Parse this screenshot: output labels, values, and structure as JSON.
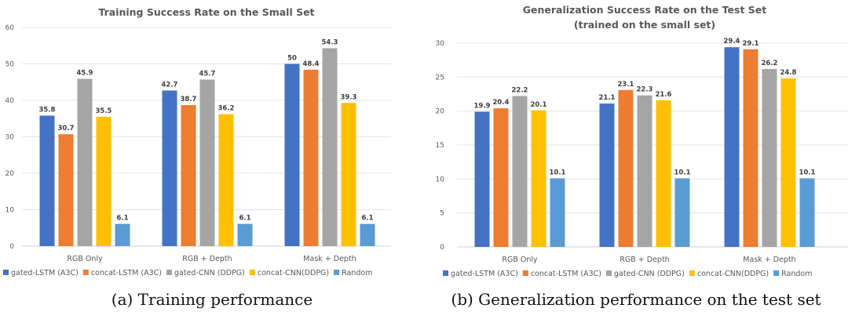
{
  "chart_data": [
    {
      "type": "bar",
      "title": "Training Success Rate on the Small Set",
      "subtitle": "",
      "xlabel": "",
      "ylabel": "",
      "ylim": [
        0,
        60
      ],
      "yticks": [
        0,
        10,
        20,
        30,
        40,
        50,
        60
      ],
      "grid": true,
      "legend_position": "bottom",
      "categories": [
        "RGB Only",
        "RGB + Depth",
        "Mask + Depth"
      ],
      "series": [
        {
          "name": "gated-LSTM (A3C)",
          "color": "#4472C4",
          "values": [
            35.8,
            42.7,
            50
          ]
        },
        {
          "name": "concat-LSTM (A3C)",
          "color": "#ED7D31",
          "values": [
            30.7,
            38.7,
            48.4
          ]
        },
        {
          "name": "gated-CNN (DDPG)",
          "color": "#A5A5A5",
          "values": [
            45.9,
            45.7,
            54.3
          ]
        },
        {
          "name": "concat-CNN(DDPG)",
          "color": "#FFC000",
          "values": [
            35.5,
            36.2,
            39.3
          ]
        },
        {
          "name": "Random",
          "color": "#5B9BD5",
          "values": [
            6.1,
            6.1,
            6.1
          ]
        }
      ],
      "caption": "(a) Training performance"
    },
    {
      "type": "bar",
      "title": "Generalization Success Rate on the Test Set",
      "subtitle": "(trained on the small set)",
      "xlabel": "",
      "ylabel": "",
      "ylim": [
        0,
        30
      ],
      "yticks": [
        0,
        5,
        10,
        15,
        20,
        25,
        30
      ],
      "grid": true,
      "legend_position": "bottom",
      "categories": [
        "RGB Only",
        "RGB + Depth",
        "Mask + Depth"
      ],
      "series": [
        {
          "name": "gated-LSTM (A3C)",
          "color": "#4472C4",
          "values": [
            19.9,
            21.1,
            29.4
          ]
        },
        {
          "name": "concat-LSTM (A3C)",
          "color": "#ED7D31",
          "values": [
            20.4,
            23.1,
            29.1
          ]
        },
        {
          "name": "gated-CNN (DDPG)",
          "color": "#A5A5A5",
          "values": [
            22.2,
            22.3,
            26.2
          ]
        },
        {
          "name": "concat-CNN(DDPG)",
          "color": "#FFC000",
          "values": [
            20.1,
            21.6,
            24.8
          ]
        },
        {
          "name": "Random",
          "color": "#5B9BD5",
          "values": [
            10.1,
            10.1,
            10.1
          ]
        }
      ],
      "caption": "(b) Generalization performance on the test set"
    }
  ]
}
